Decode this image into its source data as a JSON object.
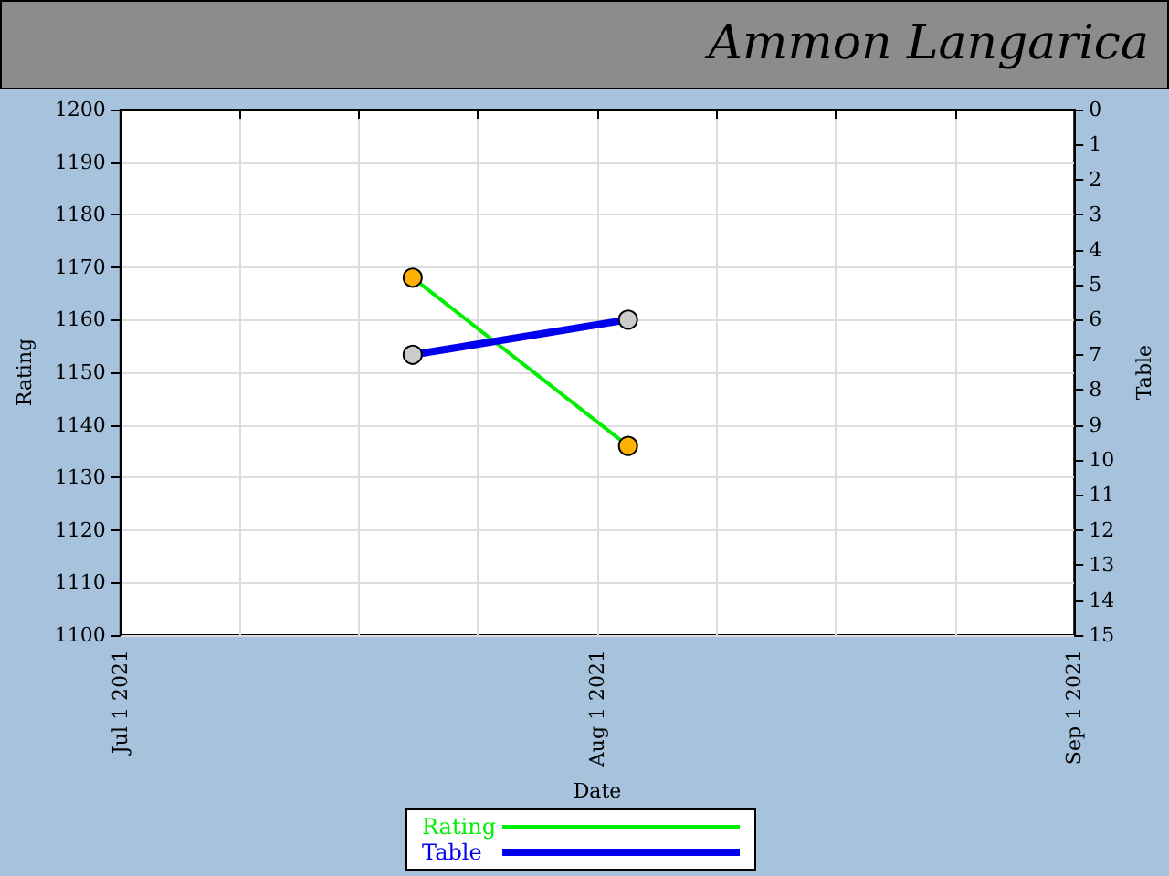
{
  "chart_data": {
    "type": "line",
    "title": "Ammon Langarica",
    "xlabel": "Date",
    "ylabel": "Rating",
    "y2label": "Table",
    "x": [
      "2021-07-20",
      "2021-08-03"
    ],
    "series": [
      {
        "name": "Rating",
        "color": "#00ee00",
        "values": [
          1168,
          1136
        ]
      },
      {
        "name": "Table",
        "color": "#0000ee",
        "values": [
          7,
          6
        ],
        "axis": "y2"
      }
    ],
    "xlim": [
      "2021-07-01",
      "2021-09-01"
    ],
    "xticks": [
      {
        "value": "2021-07-01",
        "label": "Jul 1 2021"
      },
      {
        "value": "2021-07-08T18:00",
        "label": null
      },
      {
        "value": "2021-07-16T12:00",
        "label": null
      },
      {
        "value": "2021-07-24T06:00",
        "label": null
      },
      {
        "value": "2021-08-01",
        "label": "Aug 1 2021"
      },
      {
        "value": "2021-08-08T18:00",
        "label": null
      },
      {
        "value": "2021-08-16T12:00",
        "label": null
      },
      {
        "value": "2021-08-24T06:00",
        "label": null
      },
      {
        "value": "2021-09-01",
        "label": "Sep 1 2021"
      }
    ],
    "ylim": [
      1100,
      1200
    ],
    "yticks": [
      1100,
      1110,
      1120,
      1130,
      1140,
      1150,
      1160,
      1170,
      1180,
      1190,
      1200
    ],
    "y2lim": [
      15,
      0
    ],
    "y2ticks": [
      0,
      1,
      2,
      3,
      4,
      5,
      6,
      7,
      8,
      9,
      10,
      11,
      12,
      13,
      14,
      15
    ],
    "grid": true,
    "legend": "bottom",
    "marker": "circle",
    "line_style": "solid"
  }
}
